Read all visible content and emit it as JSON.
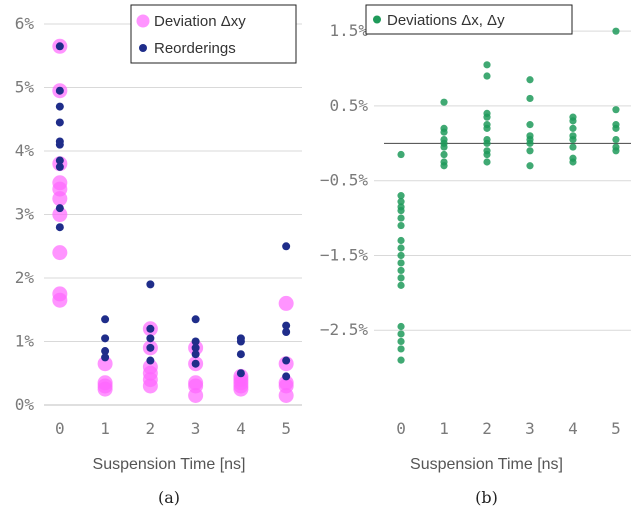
{
  "colors": {
    "deviation": "#ff66ff",
    "reorder": "#1f2d8a",
    "green": "#1f9a5a"
  },
  "chart_data": [
    {
      "type": "scatter",
      "caption": "(a)",
      "xlabel": "Suspension Time [ns]",
      "ylabel": "",
      "xlim": [
        -0.35,
        5.35
      ],
      "ylim": [
        0,
        6.3
      ],
      "xticks": [
        0,
        1,
        2,
        3,
        4,
        5
      ],
      "yticks": [
        0,
        1,
        2,
        3,
        4,
        5,
        6
      ],
      "ytick_labels": [
        "0%",
        "1%",
        "2%",
        "3%",
        "4%",
        "5%",
        "6%"
      ],
      "grid": true,
      "legend": "top-right",
      "series": [
        {
          "name": "Deviation Δxy",
          "color": "#ff66ff",
          "points": [
            [
              0,
              5.65
            ],
            [
              0,
              4.95
            ],
            [
              0,
              3.8
            ],
            [
              0,
              3.5
            ],
            [
              0,
              3.4
            ],
            [
              0,
              3.25
            ],
            [
              0,
              3.0
            ],
            [
              0,
              2.4
            ],
            [
              0,
              1.75
            ],
            [
              0,
              1.65
            ],
            [
              1,
              0.65
            ],
            [
              1,
              0.35
            ],
            [
              1,
              0.3
            ],
            [
              1,
              0.25
            ],
            [
              2,
              1.2
            ],
            [
              2,
              0.9
            ],
            [
              2,
              0.6
            ],
            [
              2,
              0.5
            ],
            [
              2,
              0.4
            ],
            [
              2,
              0.3
            ],
            [
              3,
              0.9
            ],
            [
              3,
              0.65
            ],
            [
              3,
              0.35
            ],
            [
              3,
              0.3
            ],
            [
              3,
              0.15
            ],
            [
              4,
              0.45
            ],
            [
              4,
              0.4
            ],
            [
              4,
              0.35
            ],
            [
              4,
              0.3
            ],
            [
              4,
              0.25
            ],
            [
              5,
              1.6
            ],
            [
              5,
              0.65
            ],
            [
              5,
              0.35
            ],
            [
              5,
              0.3
            ],
            [
              5,
              0.15
            ]
          ]
        },
        {
          "name": "Reorderings",
          "color": "#1f2d8a",
          "points": [
            [
              0,
              5.65
            ],
            [
              0,
              4.95
            ],
            [
              0,
              4.7
            ],
            [
              0,
              4.45
            ],
            [
              0,
              4.15
            ],
            [
              0,
              4.1
            ],
            [
              0,
              3.85
            ],
            [
              0,
              3.75
            ],
            [
              0,
              3.1
            ],
            [
              0,
              2.8
            ],
            [
              1,
              1.35
            ],
            [
              1,
              1.05
            ],
            [
              1,
              0.85
            ],
            [
              1,
              0.75
            ],
            [
              2,
              1.9
            ],
            [
              2,
              1.2
            ],
            [
              2,
              1.05
            ],
            [
              2,
              0.9
            ],
            [
              2,
              0.7
            ],
            [
              3,
              1.35
            ],
            [
              3,
              1.0
            ],
            [
              3,
              0.9
            ],
            [
              3,
              0.8
            ],
            [
              3,
              0.65
            ],
            [
              4,
              1.05
            ],
            [
              4,
              1.0
            ],
            [
              4,
              0.8
            ],
            [
              4,
              0.5
            ],
            [
              5,
              2.5
            ],
            [
              5,
              1.25
            ],
            [
              5,
              1.15
            ],
            [
              5,
              0.7
            ],
            [
              5,
              0.45
            ]
          ]
        }
      ]
    },
    {
      "type": "scatter",
      "caption": "(b)",
      "xlabel": "Suspension Time [ns]",
      "ylabel": "",
      "xlim": [
        -0.35,
        5.35
      ],
      "ylim": [
        -3.5,
        1.85
      ],
      "xticks": [
        0,
        1,
        2,
        3,
        4,
        5
      ],
      "yticks": [
        1.5,
        0.5,
        -0.5,
        -1.5,
        -2.5
      ],
      "ytick_labels": [
        "1.5%",
        "0.5%",
        "−0.5%",
        "−1.5%",
        "−2.5%"
      ],
      "zero_line": 0,
      "grid": true,
      "legend": "top-left",
      "series": [
        {
          "name": "Deviations Δx, Δy",
          "color": "#1f9a5a",
          "points": [
            [
              0,
              -0.15
            ],
            [
              0,
              -0.7
            ],
            [
              0,
              -0.78
            ],
            [
              0,
              -0.85
            ],
            [
              0,
              -0.9
            ],
            [
              0,
              -1.0
            ],
            [
              0,
              -1.1
            ],
            [
              0,
              -1.3
            ],
            [
              0,
              -1.4
            ],
            [
              0,
              -1.5
            ],
            [
              0,
              -1.6
            ],
            [
              0,
              -1.7
            ],
            [
              0,
              -1.8
            ],
            [
              0,
              -1.9
            ],
            [
              0,
              -2.45
            ],
            [
              0,
              -2.55
            ],
            [
              0,
              -2.65
            ],
            [
              0,
              -2.75
            ],
            [
              0,
              -2.9
            ],
            [
              1,
              0.55
            ],
            [
              1,
              0.2
            ],
            [
              1,
              0.15
            ],
            [
              1,
              0.05
            ],
            [
              1,
              0.0
            ],
            [
              1,
              -0.05
            ],
            [
              1,
              -0.15
            ],
            [
              1,
              -0.25
            ],
            [
              1,
              -0.3
            ],
            [
              2,
              1.05
            ],
            [
              2,
              0.9
            ],
            [
              2,
              0.4
            ],
            [
              2,
              0.35
            ],
            [
              2,
              0.25
            ],
            [
              2,
              0.2
            ],
            [
              2,
              0.05
            ],
            [
              2,
              0.0
            ],
            [
              2,
              -0.1
            ],
            [
              2,
              -0.15
            ],
            [
              2,
              -0.25
            ],
            [
              3,
              0.85
            ],
            [
              3,
              0.6
            ],
            [
              3,
              0.25
            ],
            [
              3,
              0.1
            ],
            [
              3,
              0.05
            ],
            [
              3,
              0.0
            ],
            [
              3,
              -0.1
            ],
            [
              3,
              -0.3
            ],
            [
              4,
              0.35
            ],
            [
              4,
              0.3
            ],
            [
              4,
              0.2
            ],
            [
              4,
              0.1
            ],
            [
              4,
              0.05
            ],
            [
              4,
              -0.05
            ],
            [
              4,
              -0.2
            ],
            [
              4,
              -0.25
            ],
            [
              5,
              1.5
            ],
            [
              5,
              0.45
            ],
            [
              5,
              0.25
            ],
            [
              5,
              0.2
            ],
            [
              5,
              0.05
            ],
            [
              5,
              -0.05
            ],
            [
              5,
              -0.1
            ]
          ]
        }
      ]
    }
  ]
}
